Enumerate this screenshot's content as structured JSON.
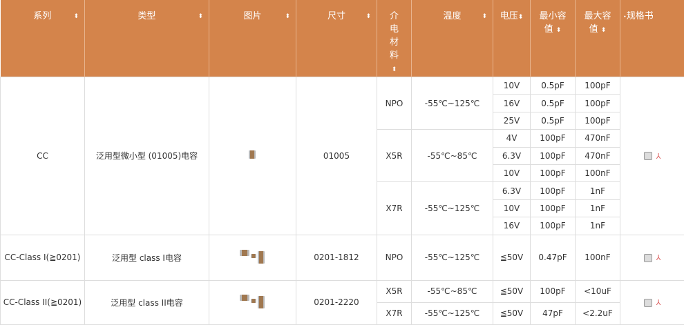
{
  "headers": [
    "系列",
    "类型",
    "图片",
    "尺寸",
    "介电材料",
    "温度",
    "电压",
    "最小容值",
    "最大容值",
    "规格书"
  ],
  "group1": {
    "series": "CC",
    "type": "泛用型微小型 (01005)电容",
    "size": "01005",
    "dielectrics": [
      {
        "name": "NPO",
        "temp": "-55℃~125℃",
        "rows": [
          [
            "10V",
            "0.5pF",
            "100pF"
          ],
          [
            "16V",
            "0.5pF",
            "100pF"
          ],
          [
            "25V",
            "0.5pF",
            "100pF"
          ]
        ]
      },
      {
        "name": "X5R",
        "temp": "-55℃~85℃",
        "rows": [
          [
            "4V",
            "100pF",
            "470nF"
          ],
          [
            "6.3V",
            "100pF",
            "470nF"
          ],
          [
            "10V",
            "100pF",
            "100nF"
          ]
        ]
      },
      {
        "name": "X7R",
        "temp": "-55℃~125℃",
        "rows": [
          [
            "6.3V",
            "100pF",
            "1nF"
          ],
          [
            "10V",
            "100pF",
            "1nF"
          ],
          [
            "16V",
            "100pF",
            "1nF"
          ]
        ]
      }
    ]
  },
  "group2": {
    "series": "CC-Class I(≧0201)",
    "type": "泛用型 class I电容",
    "size": "0201-1812",
    "dielectric": "NPO",
    "temp": "-55℃~125℃",
    "voltage": "≦50V",
    "min": "0.47pF",
    "max": "100nF"
  },
  "group3": {
    "series": "CC-Class II(≧0201)",
    "type": "泛用型 class II电容",
    "size": "0201-2220",
    "rows": [
      {
        "dielectric": "X5R",
        "temp": "-55℃~85℃",
        "voltage": "≦50V",
        "min": "100pF",
        "max": "<10uF"
      },
      {
        "dielectric": "X7R",
        "temp": "-55℃~125℃",
        "voltage": "≦50V",
        "min": "47pF",
        "max": "<2.2uF"
      }
    ]
  },
  "colors": {
    "header_bg": "#d4844b"
  },
  "icons": {
    "sort": "sort-arrows-icon",
    "pdf": "pdf-icon",
    "checkbox": "checkbox"
  }
}
